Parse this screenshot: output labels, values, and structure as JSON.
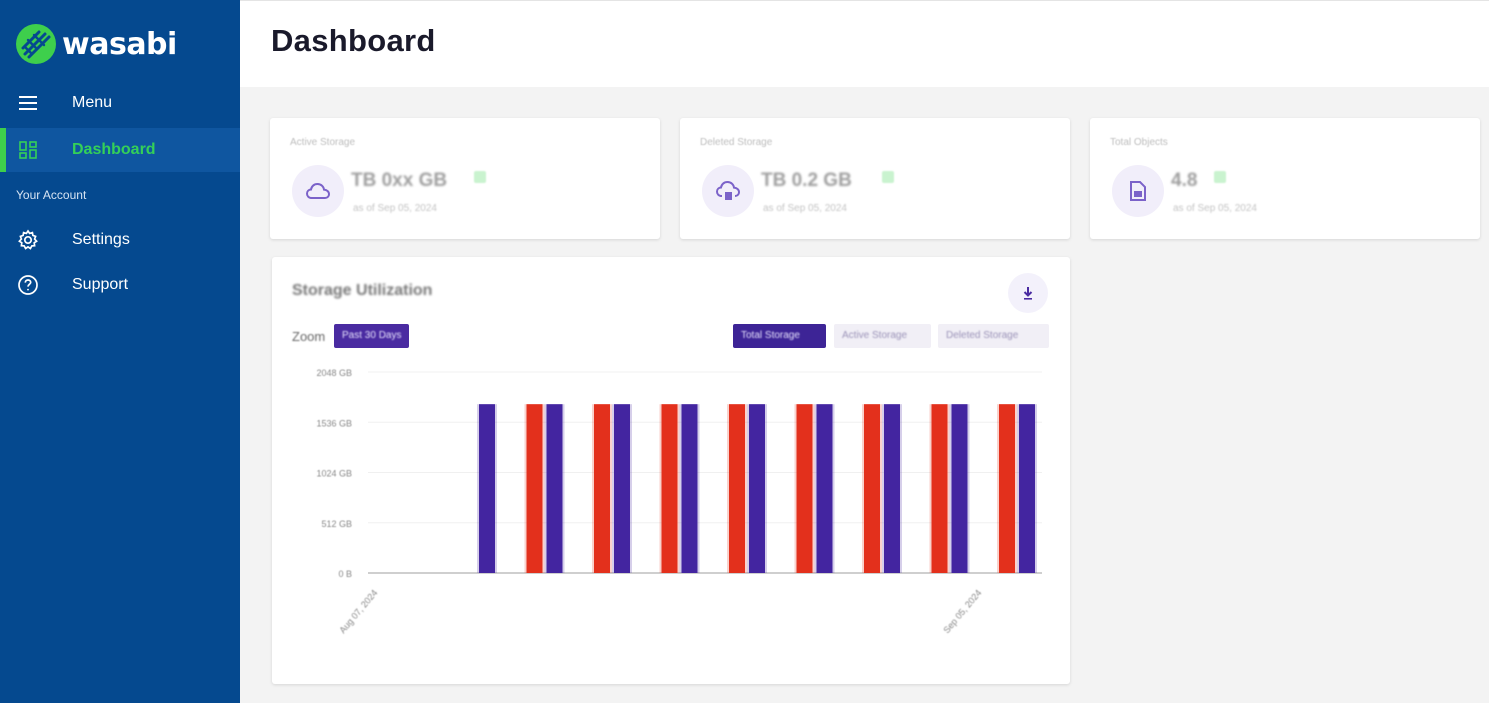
{
  "app": {
    "brand": "wasabi",
    "accent_green": "#34d058",
    "sidebar_bg": "#05498f"
  },
  "sidebar": {
    "menu_label": "Menu",
    "dashboard_label": "Dashboard",
    "section_label": "Your Account",
    "settings_label": "Settings",
    "support_label": "Support"
  },
  "header": {
    "title": "Dashboard"
  },
  "stats": [
    {
      "label": "Active Storage",
      "value": "TB 0xx GB",
      "date": "as of Sep 05, 2024",
      "icon": "cloud-icon"
    },
    {
      "label": "Deleted Storage",
      "value": "TB 0.2 GB",
      "date": "as of Sep 05, 2024",
      "icon": "cloud-delete-icon"
    },
    {
      "label": "Total Objects",
      "value": "4.8",
      "date": "as of Sep 05, 2024",
      "icon": "object-icon"
    }
  ],
  "chart": {
    "title": "Storage Utilization",
    "zoom_label": "Zoom",
    "zoom_option": "Past 30 Days",
    "toggles": [
      "Total Storage",
      "Active Storage",
      "Deleted Storage"
    ]
  },
  "chart_data": {
    "type": "bar",
    "ylim": [
      0,
      2048
    ],
    "y_ticks": [
      "0 B",
      "512 GB",
      "1024 GB",
      "1536 GB",
      "2048 GB"
    ],
    "x_tick_labels": [
      "Aug 07, 2024",
      "Sep 05, 2024"
    ],
    "series": [
      {
        "name": "Active Storage",
        "color": "#e3301c",
        "values": [
          null,
          1720,
          1720,
          1720,
          1720,
          1720,
          1720,
          1720,
          1720
        ]
      },
      {
        "name": "Total Storage",
        "color": "#4325a0",
        "values": [
          1720,
          1720,
          1720,
          1720,
          1720,
          1720,
          1720,
          1720,
          1720
        ]
      }
    ]
  }
}
